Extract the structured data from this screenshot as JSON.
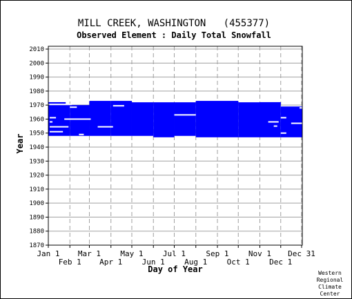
{
  "chart_data": {
    "type": "heatmap",
    "title": "MILL CREEK, WASHINGTON   (455377)",
    "subtitle": "Observed Element : Daily Total Snowfall",
    "xlabel": "Day of Year",
    "ylabel": "Year",
    "credit": [
      "Western",
      "Regional",
      "Climate",
      "Center"
    ],
    "y_ticks": [
      1870,
      1880,
      1890,
      1900,
      1910,
      1920,
      1930,
      1940,
      1950,
      1960,
      1970,
      1980,
      1990,
      2000,
      2010
    ],
    "ylim": [
      1870,
      2012
    ],
    "xlim": [
      1,
      366
    ],
    "x_ticks_top": [
      {
        "label": "Jan 1",
        "day": 1
      },
      {
        "label": "Mar 1",
        "day": 60
      },
      {
        "label": "May 1",
        "day": 121
      },
      {
        "label": "Jul 1",
        "day": 182
      },
      {
        "label": "Sep 1",
        "day": 244
      },
      {
        "label": "Nov 1",
        "day": 305
      },
      {
        "label": "Dec 31",
        "day": 365
      }
    ],
    "x_ticks_bottom": [
      {
        "label": "Feb 1",
        "day": 32
      },
      {
        "label": "Apr 1",
        "day": 91
      },
      {
        "label": "Jun 1",
        "day": 152
      },
      {
        "label": "Aug 1",
        "day": 213
      },
      {
        "label": "Oct 1",
        "day": 274
      },
      {
        "label": "Dec 1",
        "day": 335
      }
    ],
    "grid": true,
    "data_color": "#0000ff",
    "coverage": [
      {
        "start_day": 1,
        "end_day": 32,
        "y_start": 1948,
        "y_end": 1970
      },
      {
        "start_day": 32,
        "end_day": 60,
        "y_start": 1948,
        "y_end": 1970
      },
      {
        "start_day": 60,
        "end_day": 91,
        "y_start": 1948,
        "y_end": 1973
      },
      {
        "start_day": 91,
        "end_day": 121,
        "y_start": 1948,
        "y_end": 1973
      },
      {
        "start_day": 121,
        "end_day": 152,
        "y_start": 1948,
        "y_end": 1972
      },
      {
        "start_day": 152,
        "end_day": 182,
        "y_start": 1947,
        "y_end": 1972
      },
      {
        "start_day": 182,
        "end_day": 213,
        "y_start": 1948,
        "y_end": 1972
      },
      {
        "start_day": 213,
        "end_day": 244,
        "y_start": 1947,
        "y_end": 1973
      },
      {
        "start_day": 244,
        "end_day": 274,
        "y_start": 1947,
        "y_end": 1973
      },
      {
        "start_day": 274,
        "end_day": 305,
        "y_start": 1947,
        "y_end": 1972
      },
      {
        "start_day": 305,
        "end_day": 335,
        "y_start": 1947,
        "y_end": 1972
      },
      {
        "start_day": 335,
        "end_day": 366,
        "y_start": 1947,
        "y_end": 1969
      }
    ],
    "extra_segments": [
      {
        "start_day": 1,
        "end_day": 26,
        "year": 1971.5
      },
      {
        "start_day": 305,
        "end_day": 335,
        "year": 1971.5
      }
    ],
    "gaps": [
      {
        "start_day": 3,
        "end_day": 35,
        "year": 1970.5
      },
      {
        "start_day": 32,
        "end_day": 42,
        "year": 1968.5
      },
      {
        "start_day": 24,
        "end_day": 62,
        "year": 1960
      },
      {
        "start_day": 3,
        "end_day": 12,
        "year": 1961
      },
      {
        "start_day": 3,
        "end_day": 7,
        "year": 1958
      },
      {
        "start_day": 3,
        "end_day": 30,
        "year": 1954.5
      },
      {
        "start_day": 3,
        "end_day": 22,
        "year": 1951
      },
      {
        "start_day": 45,
        "end_day": 52,
        "year": 1949
      },
      {
        "start_day": 72,
        "end_day": 94,
        "year": 1954.5
      },
      {
        "start_day": 94,
        "end_day": 110,
        "year": 1969.5
      },
      {
        "start_day": 182,
        "end_day": 213,
        "year": 1963
      },
      {
        "start_day": 317,
        "end_day": 332,
        "year": 1958
      },
      {
        "start_day": 325,
        "end_day": 330,
        "year": 1955
      },
      {
        "start_day": 335,
        "end_day": 343,
        "year": 1961
      },
      {
        "start_day": 335,
        "end_day": 343,
        "year": 1950
      },
      {
        "start_day": 350,
        "end_day": 366,
        "year": 1957
      },
      {
        "start_day": 362,
        "end_day": 366,
        "year": 1968
      }
    ]
  }
}
